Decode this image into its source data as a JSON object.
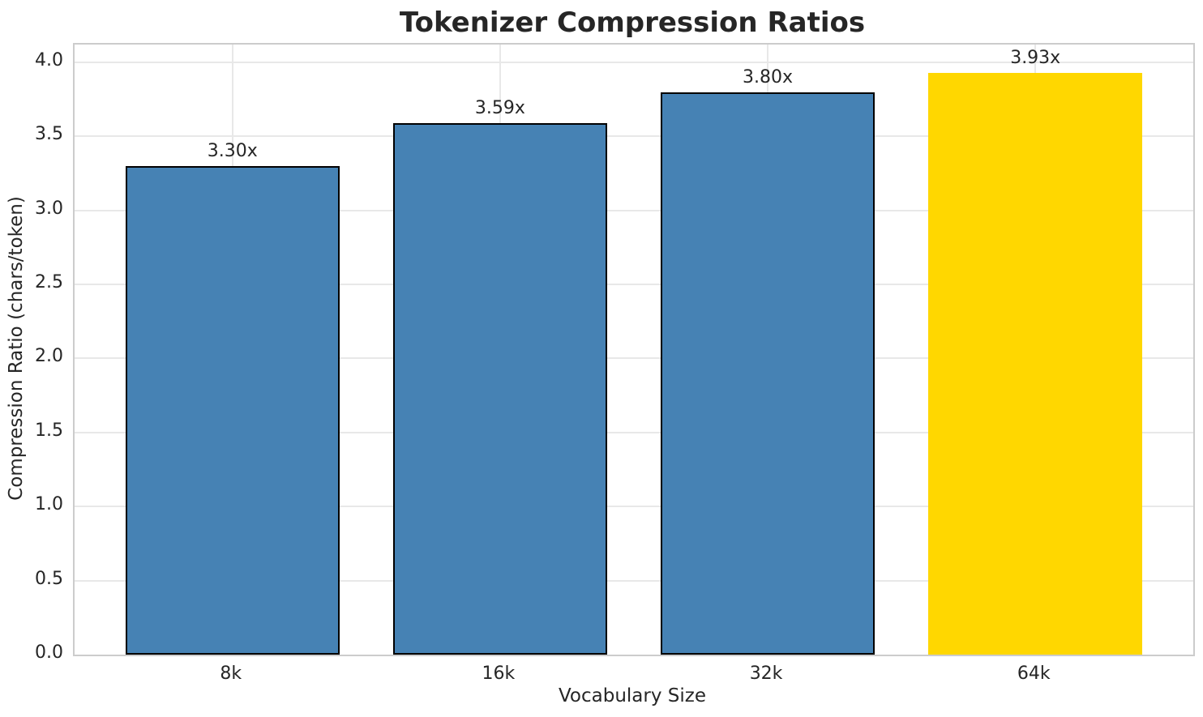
{
  "chart_data": {
    "type": "bar",
    "title": "Tokenizer Compression Ratios",
    "xlabel": "Vocabulary Size",
    "ylabel": "Compression Ratio (chars/token)",
    "categories": [
      "8k",
      "16k",
      "32k",
      "64k"
    ],
    "values": [
      3.3,
      3.59,
      3.8,
      3.93
    ],
    "bar_labels": [
      "3.30x",
      "3.59x",
      "3.80x",
      "3.93x"
    ],
    "bar_colors": [
      "#4682B4",
      "#4682B4",
      "#4682B4",
      "#FFD700"
    ],
    "bar_edge_colors": [
      "#000000",
      "#000000",
      "#000000",
      "none"
    ],
    "ylim": [
      0,
      4.12
    ],
    "yticks": [
      0.0,
      0.5,
      1.0,
      1.5,
      2.0,
      2.5,
      3.0,
      3.5,
      4.0
    ],
    "ytick_labels": [
      "0.0",
      "0.5",
      "1.0",
      "1.5",
      "2.0",
      "2.5",
      "3.0",
      "3.5",
      "4.0"
    ],
    "grid": true,
    "legend": "none",
    "bar_width_units": 0.8,
    "xlim_units": [
      -0.59,
      3.59
    ]
  },
  "colors": {
    "background": "#ffffff",
    "text": "#262626",
    "grid": "#e8e8e8",
    "spine": "#cccccc",
    "bar_main": "#4682B4",
    "bar_highlight": "#FFD700",
    "bar_edge": "#000000"
  }
}
